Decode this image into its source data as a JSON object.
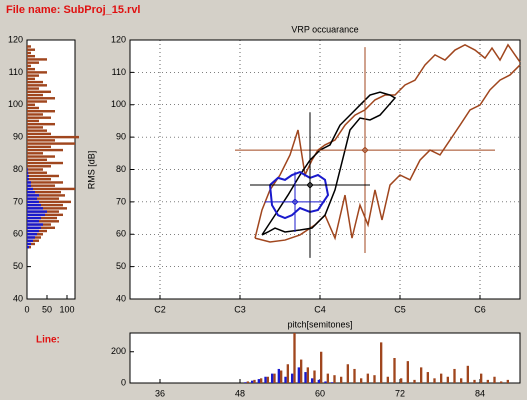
{
  "header": {
    "title": "File name: SubProj_15.rvl"
  },
  "line_label": "Line:",
  "chart_data": [
    {
      "type": "hbar",
      "y": [
        56,
        57,
        58,
        59,
        60,
        61,
        62,
        63,
        64,
        65,
        66,
        67,
        68,
        69,
        70,
        71,
        72,
        73,
        74,
        75,
        76,
        77,
        78,
        79,
        80,
        81,
        82,
        83,
        84,
        85,
        86,
        87,
        88,
        89,
        90,
        91,
        92,
        93,
        94,
        95,
        96,
        97,
        98,
        99,
        100,
        101,
        102,
        103,
        104,
        105,
        106,
        107,
        108,
        109,
        110,
        111,
        112,
        113,
        114,
        115,
        116,
        117,
        118
      ],
      "series": [
        {
          "color": "#a0461e",
          "values": [
            10,
            20,
            30,
            35,
            40,
            50,
            70,
            60,
            80,
            75,
            90,
            80,
            100,
            90,
            110,
            80,
            95,
            85,
            120,
            70,
            90,
            60,
            80,
            50,
            40,
            60,
            90,
            50,
            70,
            40,
            90,
            60,
            120,
            70,
            130,
            60,
            50,
            40,
            70,
            30,
            60,
            40,
            70,
            30,
            20,
            50,
            70,
            40,
            60,
            30,
            50,
            40,
            20,
            30,
            50,
            20,
            10,
            30,
            50,
            20,
            10,
            20,
            10
          ]
        },
        {
          "color": "#1a1acc",
          "values": [
            5,
            10,
            15,
            20,
            25,
            30,
            35,
            40,
            30,
            35,
            45,
            50,
            40,
            35,
            30,
            25,
            30,
            20,
            15,
            10,
            10,
            5,
            5,
            3,
            2,
            null,
            null,
            null,
            null,
            null,
            null,
            null,
            null,
            null,
            null,
            null,
            null,
            null,
            null,
            null,
            null,
            null,
            null,
            null,
            null,
            null,
            null,
            null,
            null,
            null,
            null,
            null,
            null,
            null,
            null,
            null,
            null,
            null,
            null,
            null,
            null,
            null,
            null
          ]
        }
      ],
      "xlim": [
        0,
        120
      ],
      "ylim": [
        40,
        120
      ],
      "xticks": [
        0,
        50,
        100
      ],
      "yticks": [
        40,
        50,
        60,
        70,
        80,
        90,
        100,
        110,
        120
      ]
    },
    {
      "type": "line",
      "title": "VRP occuarance",
      "xlabel": "pitch[semitones]",
      "ylabel": "RMS [dB]",
      "xlim": [
        31.5,
        90
      ],
      "ylim": [
        40,
        120
      ],
      "grid": true,
      "xticks": [
        {
          "value": 36,
          "label": "C2"
        },
        {
          "value": 48,
          "label": "C3"
        },
        {
          "value": 60,
          "label": "C4"
        },
        {
          "value": 72,
          "label": "C5"
        },
        {
          "value": 84,
          "label": "C6"
        }
      ],
      "yticks": [
        40,
        50,
        60,
        70,
        80,
        90,
        100,
        110,
        120
      ],
      "series": [
        {
          "color": "#a0461e",
          "x": [
            50.25,
            52.5,
            54.75,
            57,
            59.25,
            60.75,
            62.25,
            63.75,
            64.8,
            66,
            67.2,
            68.25,
            69.3,
            70.5,
            72,
            73.5,
            75,
            76.5,
            78,
            79.5,
            81,
            82.5,
            84,
            85.5,
            87,
            88.5,
            90
          ],
          "values": [
            58.8,
            57.6,
            58.2,
            59.8,
            62.9,
            65.9,
            58.8,
            72.1,
            58.8,
            69.0,
            62.9,
            73.7,
            64.4,
            75.2,
            78.3,
            76.8,
            82.9,
            86.0,
            84.5,
            89.1,
            93.7,
            98.4,
            99.9,
            104.6,
            107.6,
            109.2,
            112.3
          ]
        },
        {
          "color": "#a0461e",
          "x": [
            50.25,
            51.3,
            52.5,
            54,
            55.5,
            56.7,
            57.75,
            58.8,
            59.7,
            60.75,
            62.25,
            63.75,
            65.25,
            66.75,
            68.25,
            69.75,
            71.25,
            72.75,
            74.25,
            75.75,
            77.25,
            78.75,
            80.25,
            81.75,
            83.25,
            84.75,
            85.8,
            87,
            88.2,
            89.25,
            90
          ],
          "values": [
            58.8,
            67.5,
            73.7,
            78.3,
            84.5,
            92.2,
            78.3,
            82.9,
            86.0,
            87.6,
            89.1,
            93.7,
            96.8,
            98.4,
            101.5,
            103.0,
            103.0,
            106.1,
            107.6,
            112.3,
            115.4,
            113.8,
            116.9,
            118.5,
            116.9,
            114.4,
            117.5,
            113.8,
            118.5,
            115.4,
            113.2
          ]
        },
        {
          "color": "#000000",
          "x": [
            51.3,
            53.25,
            55.2,
            57,
            58.5,
            60,
            61.5,
            63,
            64.5,
            66,
            67.5,
            69,
            70.5,
            71.25,
            69,
            67.5,
            66,
            64.5,
            63.75,
            62.25,
            60.75,
            58.8,
            57,
            54.75,
            53.25,
            52.2,
            51.3
          ],
          "values": [
            59.8,
            65.9,
            72.1,
            78.3,
            82.9,
            86.0,
            87.6,
            93.7,
            96.8,
            99.9,
            103.0,
            103.9,
            103.0,
            102.1,
            96.8,
            95.3,
            95.9,
            92.2,
            86.0,
            73.7,
            65.9,
            61.9,
            61.3,
            60.7,
            61.9,
            60.7,
            59.8
          ]
        },
        {
          "color": "#1a1acc",
          "x": [
            52.5,
            53.7,
            54.75,
            55.8,
            57,
            58.5,
            59.7,
            60.75,
            61.2,
            59.7,
            58.5,
            57,
            55.8,
            54.75,
            53.7,
            52.8,
            52.5
          ],
          "values": [
            75.2,
            77.4,
            76.8,
            78.3,
            79.2,
            77.4,
            78.3,
            76.8,
            72.1,
            67.5,
            66.9,
            68.1,
            65.9,
            65.0,
            65.9,
            69.0,
            75.2
          ]
        }
      ],
      "crosshairs": [
        {
          "color": "#a0461e",
          "x": 66.75,
          "y": 86.0,
          "xerr": 19.5,
          "yerr": 31.8
        },
        {
          "color": "#000000",
          "x": 58.5,
          "y": 75.2,
          "xerr": 9,
          "yerr": 22.5
        },
        {
          "color": "#1a1acc",
          "x": 56.25,
          "y": 70.0,
          "xerr": 4.5,
          "yerr": 9.3
        }
      ]
    },
    {
      "type": "bar",
      "x": [
        49,
        50,
        51,
        52,
        53,
        54,
        55,
        56,
        57,
        58,
        59,
        60,
        61,
        62,
        63,
        64,
        65,
        66,
        67,
        68,
        69,
        70,
        71,
        72,
        73,
        74,
        75,
        76,
        77,
        78,
        79,
        80,
        81,
        82,
        83,
        84,
        85,
        86,
        87,
        88
      ],
      "series": [
        {
          "color": "#a0461e",
          "values": [
            10,
            20,
            30,
            40,
            60,
            80,
            120,
            320,
            150,
            100,
            80,
            200,
            60,
            50,
            40,
            120,
            90,
            30,
            60,
            50,
            260,
            40,
            160,
            30,
            140,
            20,
            100,
            70,
            30,
            60,
            40,
            90,
            30,
            110,
            20,
            60,
            20,
            40,
            10,
            20
          ]
        },
        {
          "color": "#1a1acc",
          "values": [
            5,
            15,
            25,
            40,
            60,
            90,
            40,
            60,
            100,
            70,
            30,
            20,
            10,
            5,
            null,
            null,
            null,
            null,
            null,
            null,
            null,
            null,
            null,
            null,
            null,
            null,
            null,
            null,
            null,
            null,
            null,
            null,
            null,
            null,
            null,
            null,
            null,
            null,
            null,
            null
          ]
        }
      ],
      "xlim": [
        31.5,
        90
      ],
      "ylim": [
        0,
        320
      ],
      "xticks": [
        36,
        48,
        60,
        72,
        84
      ],
      "yticks": [
        0,
        200
      ]
    }
  ]
}
